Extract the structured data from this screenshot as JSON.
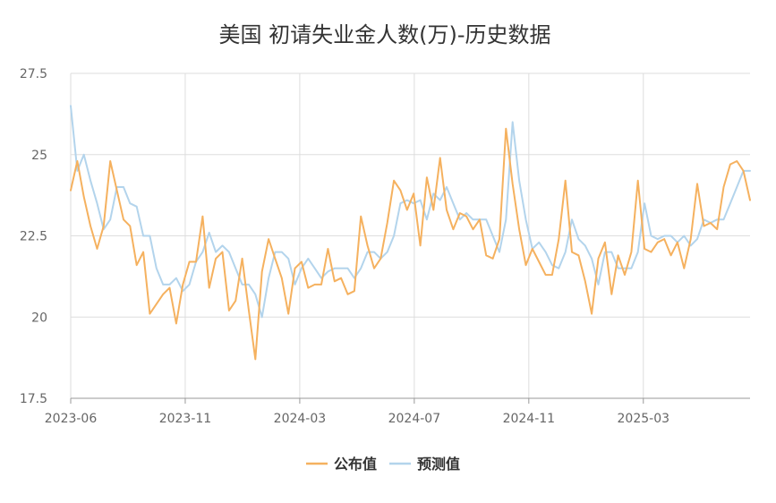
{
  "chart_data": {
    "type": "line",
    "title": "美国 初请失业金人数(万)-历史数据",
    "xlabel": "",
    "ylabel": "",
    "ylim": [
      17.5,
      27.5
    ],
    "y_ticks": [
      "17.5",
      "20",
      "22.5",
      "25",
      "27.5"
    ],
    "x_tick_labels": [
      "2023-06",
      "2023-11",
      "2024-03",
      "2024-07",
      "2024-11",
      "2025-03"
    ],
    "grid": true,
    "legend_position": "bottom",
    "colors": {
      "公布值": "#f5b15f",
      "预测值": "#b3d4ec"
    },
    "series": [
      {
        "name": "公布值",
        "values": [
          23.9,
          24.8,
          23.7,
          22.8,
          22.1,
          22.8,
          24.8,
          23.9,
          23.0,
          22.8,
          21.6,
          22.0,
          20.1,
          20.4,
          20.7,
          20.9,
          19.8,
          21.0,
          21.7,
          21.7,
          23.1,
          20.9,
          21.8,
          22.0,
          20.2,
          20.5,
          21.8,
          20.2,
          18.7,
          21.4,
          22.4,
          21.8,
          21.2,
          20.1,
          21.5,
          21.7,
          20.9,
          21.0,
          21.0,
          22.1,
          21.1,
          21.2,
          20.7,
          20.8,
          23.1,
          22.2,
          21.5,
          21.8,
          22.9,
          24.2,
          23.9,
          23.3,
          23.8,
          22.2,
          24.3,
          23.3,
          24.9,
          23.3,
          22.7,
          23.2,
          23.1,
          22.7,
          23.0,
          21.9,
          21.8,
          22.4,
          25.8,
          24.1,
          22.7,
          21.6,
          22.1,
          21.7,
          21.3,
          21.3,
          22.4,
          24.2,
          22.0,
          21.9,
          21.1,
          20.1,
          21.8,
          22.3,
          20.7,
          21.9,
          21.3,
          22.0,
          24.2,
          22.1,
          22.0,
          22.3,
          22.4,
          21.9,
          22.3,
          21.5,
          22.4,
          24.1,
          22.8,
          22.9,
          22.7,
          24.0,
          24.7,
          24.8,
          24.5,
          23.6
        ]
      },
      {
        "name": "预测值",
        "values": [
          26.5,
          24.5,
          25.0,
          24.2,
          23.5,
          22.7,
          23.0,
          24.0,
          24.0,
          23.5,
          23.4,
          22.5,
          22.5,
          21.5,
          21.0,
          21.0,
          21.2,
          20.8,
          21.0,
          21.7,
          22.0,
          22.6,
          22.0,
          22.2,
          22.0,
          21.5,
          21.0,
          21.0,
          20.7,
          20.0,
          21.2,
          22.0,
          22.0,
          21.8,
          21.0,
          21.5,
          21.8,
          21.5,
          21.2,
          21.4,
          21.5,
          21.5,
          21.5,
          21.2,
          21.5,
          22.0,
          22.0,
          21.8,
          22.0,
          22.5,
          23.5,
          23.6,
          23.5,
          23.6,
          23.0,
          23.8,
          23.6,
          24.0,
          23.5,
          23.0,
          23.2,
          23.0,
          23.0,
          23.0,
          22.5,
          22.0,
          23.0,
          26.0,
          24.2,
          23.0,
          22.1,
          22.3,
          22.0,
          21.6,
          21.5,
          22.0,
          23.0,
          22.4,
          22.2,
          21.8,
          21.0,
          22.0,
          22.0,
          21.5,
          21.5,
          21.5,
          22.0,
          23.5,
          22.5,
          22.4,
          22.5,
          22.5,
          22.3,
          22.5,
          22.2,
          22.4,
          23.0,
          22.9,
          23.0,
          23.0,
          23.5,
          24.0,
          24.5,
          24.5
        ]
      }
    ]
  }
}
